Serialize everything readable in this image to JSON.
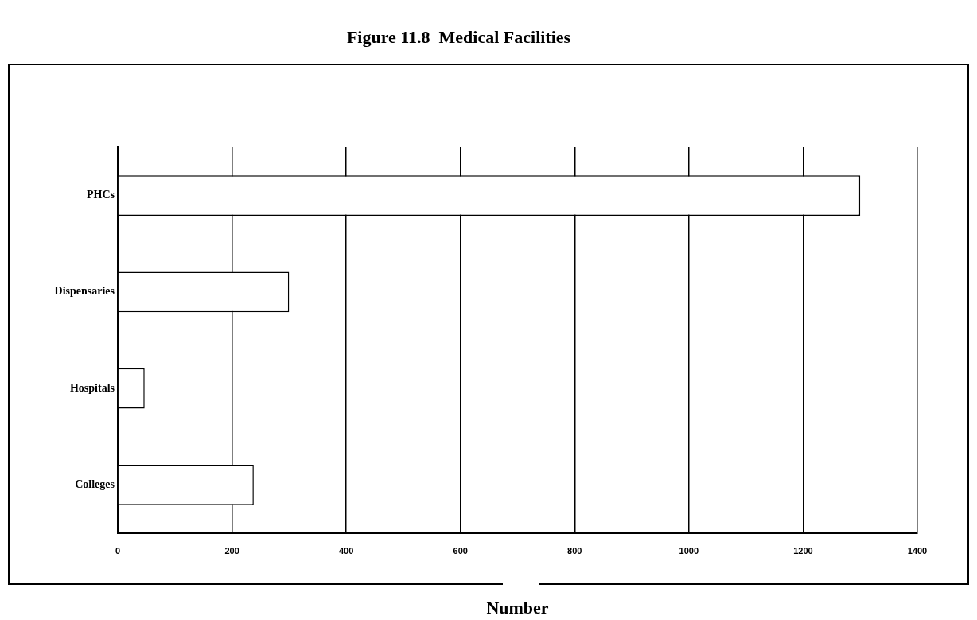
{
  "chart_data": {
    "type": "bar",
    "orientation": "horizontal",
    "title": "Figure 11.8  Medical Facilities",
    "xlabel": "Number",
    "categories": [
      "PHCs",
      "Dispensaries",
      "Hospitals",
      "Colleges"
    ],
    "values": [
      1300,
      300,
      47,
      238
    ],
    "color": "#ffffff",
    "xlim": [
      0,
      1400
    ],
    "xticks": [
      0,
      200,
      400,
      600,
      800,
      1000,
      1200,
      1400
    ],
    "grid": "x"
  }
}
